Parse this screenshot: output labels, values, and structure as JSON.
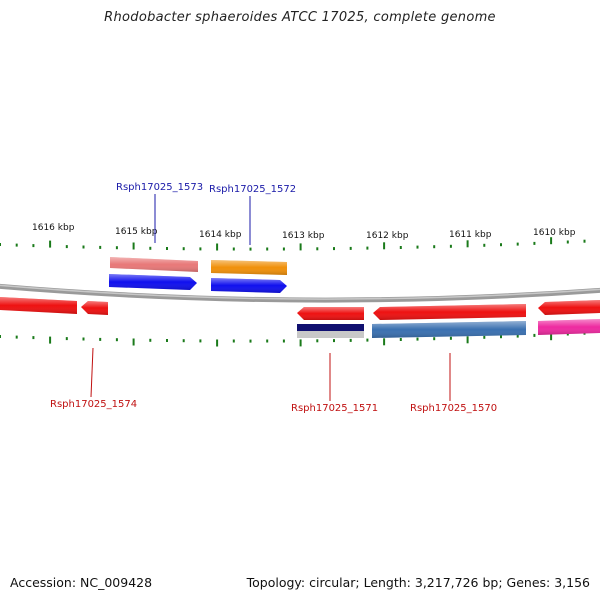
{
  "title": "Rhodobacter sphaeroides ATCC 17025, complete genome",
  "footer": {
    "accession": "Accession: NC_009428",
    "summary": "Topology: circular; Length: 3,217,726 bp; Genes: 3,156"
  },
  "kbp_labels": [
    "1616 kbp",
    "1615 kbp",
    "1614 kbp",
    "1613 kbp",
    "1612 kbp",
    "1611 kbp",
    "1610 kbp"
  ],
  "gene_labels": {
    "g1573": "Rsph17025_1573",
    "g1572": "Rsph17025_1572",
    "g1574": "Rsph17025_1574",
    "g1571": "Rsph17025_1571",
    "g1570": "Rsph17025_1570"
  },
  "colors": {
    "backbone": "#8a8a8a",
    "tick": "#1a7a1a",
    "label_forward": "#1a1aa8",
    "label_reverse": "#c01010",
    "red": "#ee1111",
    "pink": "#e87878",
    "blue": "#1010ee",
    "orange": "#f0900a",
    "navy": "#101070",
    "steel": "#3a70b0",
    "magenta": "#ee2aa0"
  }
}
